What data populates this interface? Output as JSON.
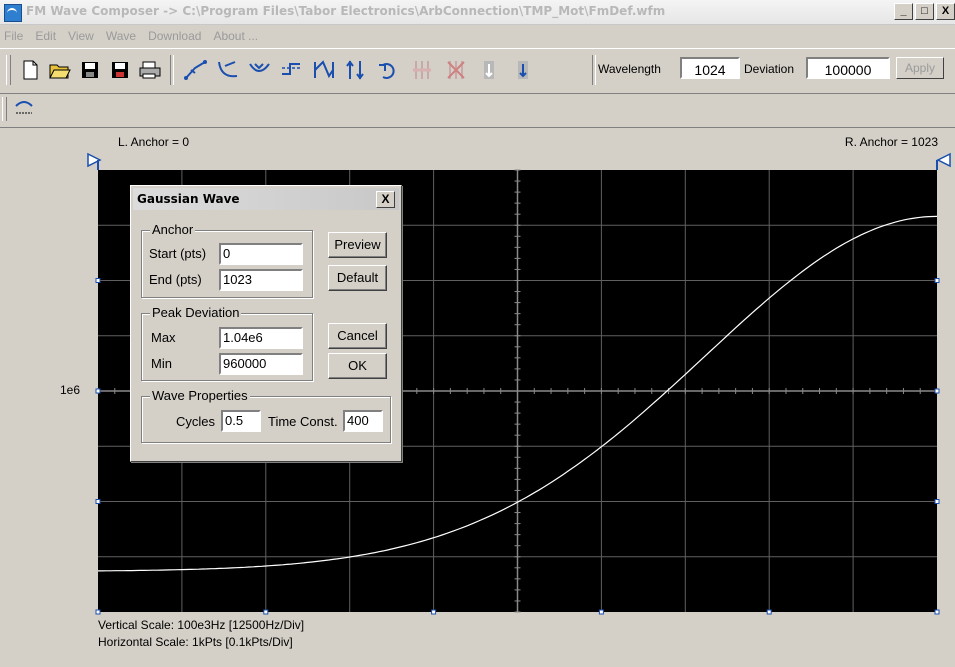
{
  "window": {
    "title": "FM Wave Composer -> C:\\Program Files\\Tabor Electronics\\ArbConnection\\TMP_Mot\\FmDef.wfm",
    "min": "_",
    "max": "□",
    "close": "X"
  },
  "menu": [
    "File",
    "Edit",
    "View",
    "Wave",
    "Download",
    "About ..."
  ],
  "toolbar": {
    "wavelength_label": "Wavelength",
    "wavelength_value": "1024",
    "deviation_label": "Deviation",
    "deviation_value": "100000",
    "apply_label": "Apply"
  },
  "plot": {
    "left_anchor": "L. Anchor = 0",
    "right_anchor": "R. Anchor = 1023",
    "y_center_label": "1e6",
    "vertical_scale": "Vertical Scale: 100e3Hz  [12500Hz/Div]",
    "horizontal_scale": "Horizontal Scale: 1kPts [0.1kPts/Div]",
    "background": "#000000",
    "grid_color": "#606060",
    "trace_color": "#ffffff"
  },
  "dialog": {
    "title": "Gaussian Wave",
    "close": "X",
    "anchor_group": "Anchor",
    "start_label": "Start (pts)",
    "start_value": "0",
    "end_label": "End  (pts)",
    "end_value": "1023",
    "peak_group": "Peak Deviation",
    "max_label": "Max",
    "max_value": "1.04e6",
    "min_label": "Min",
    "min_value": "960000",
    "wave_group": "Wave Properties",
    "cycles_label": "Cycles",
    "cycles_value": "0.5",
    "timeconst_label": "Time Const.",
    "timeconst_value": "400",
    "preview_btn": "Preview",
    "default_btn": "Default",
    "cancel_btn": "Cancel",
    "ok_btn": "OK"
  },
  "toolbar_icons": [
    "new-file-icon",
    "open-folder-icon",
    "save-icon",
    "save-as-icon",
    "print-icon",
    "curve-tool-1-icon",
    "curve-tool-2-icon",
    "curve-tool-3-icon",
    "curve-tool-4-icon",
    "curve-tool-5-icon",
    "curve-tool-6-icon",
    "undo-icon",
    "disabled-tool-1-icon",
    "disabled-tool-2-icon",
    "disabled-tool-3-icon",
    "disabled-tool-4-icon"
  ]
}
